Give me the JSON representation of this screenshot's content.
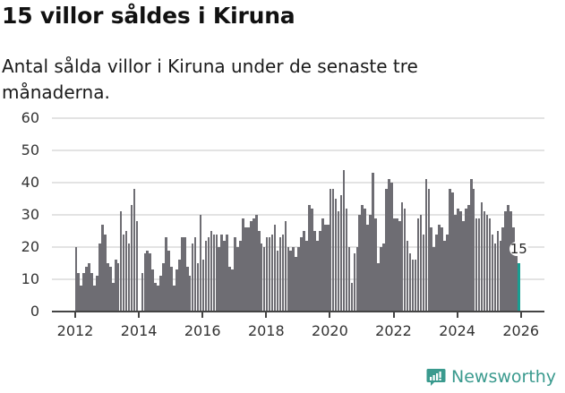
{
  "title": "15 villor såldes i Kiruna",
  "subtitle": "Antal sålda villor i Kiruna under de senaste tre månaderna.",
  "logo": {
    "label": "Newsworthy",
    "icon": "newsworthy-chart-bubble-icon",
    "color": "#3a9a8e"
  },
  "colors": {
    "bar": "#6e6d73",
    "highlight": "#1a9e92",
    "grid": "#e3e3e3"
  },
  "chart_data": {
    "type": "bar",
    "title": "15 villor såldes i Kiruna",
    "subtitle": "Antal sålda villor i Kiruna under de senaste tre månaderna.",
    "xlabel": "",
    "ylabel": "",
    "ylim": [
      0,
      60
    ],
    "yticks": [
      0,
      10,
      20,
      30,
      40,
      50,
      60
    ],
    "xticks": [
      "2012",
      "2014",
      "2016",
      "2018",
      "2020",
      "2022",
      "2024",
      "2026"
    ],
    "grid": true,
    "legend": null,
    "start": "2012-01",
    "frequency": "monthly",
    "annotation": {
      "label": "15",
      "index": 167
    },
    "values": [
      20,
      12,
      8,
      12,
      14,
      15,
      12,
      8,
      11,
      21,
      27,
      24,
      15,
      14,
      9,
      16,
      15,
      31,
      24,
      25,
      21,
      33,
      38,
      28,
      0,
      12,
      18,
      19,
      18,
      13,
      9,
      8,
      11,
      15,
      23,
      19,
      14,
      8,
      13,
      16,
      23,
      23,
      14,
      11,
      21,
      23,
      15,
      30,
      16,
      22,
      23,
      25,
      24,
      24,
      20,
      24,
      22,
      24,
      14,
      13,
      23,
      20,
      22,
      29,
      26,
      26,
      28,
      29,
      30,
      25,
      21,
      20,
      23,
      23,
      24,
      27,
      19,
      23,
      24,
      28,
      20,
      19,
      20,
      17,
      20,
      23,
      25,
      22,
      33,
      32,
      25,
      22,
      25,
      29,
      27,
      27,
      38,
      38,
      35,
      31,
      36,
      44,
      32,
      20,
      9,
      18,
      20,
      30,
      33,
      32,
      27,
      30,
      43,
      29,
      15,
      20,
      21,
      38,
      41,
      40,
      29,
      29,
      28,
      34,
      32,
      22,
      18,
      16,
      16,
      29,
      30,
      24,
      41,
      38,
      26,
      20,
      24,
      27,
      26,
      22,
      24,
      38,
      37,
      30,
      32,
      31,
      28,
      32,
      33,
      41,
      38,
      29,
      29,
      34,
      31,
      30,
      29,
      24,
      21,
      25,
      22,
      26,
      31,
      33,
      31,
      26,
      20,
      15
    ]
  }
}
